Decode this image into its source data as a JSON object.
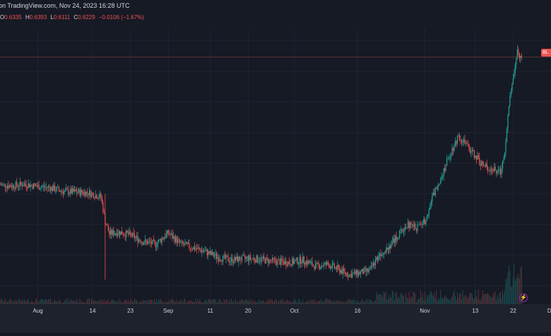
{
  "header": {
    "source": "on TradingView.com, Nov 24, 2023 16:28 UTC"
  },
  "ohlc": {
    "open_label": "O",
    "open": "0.6335",
    "high_label": "H",
    "high": "0.6393",
    "low_label": "L",
    "low": "0.6111",
    "close_label": "C",
    "close": "0.6229",
    "change": "−0.0106 (−1.67%)"
  },
  "price_tag": "BL",
  "colors": {
    "background": "#161a25",
    "axis_bg": "#1e222d",
    "up": "#26a69a",
    "down": "#ef5350",
    "grid": "#1f2330",
    "text": "#d1d4dc"
  },
  "chart_data": {
    "type": "candlestick",
    "x_tick_labels": [
      "Aug",
      "14",
      "23",
      "Sep",
      "11",
      "20",
      "Oct",
      "16",
      "Nov",
      "13",
      "22",
      "De"
    ],
    "x_tick_dates": [
      "2023-08-01",
      "2023-08-14",
      "2023-08-23",
      "2023-09-01",
      "2023-09-11",
      "2023-09-20",
      "2023-10-01",
      "2023-10-16",
      "2023-11-01",
      "2023-11-13",
      "2023-11-22",
      "2023-12-01"
    ],
    "x_range": [
      "2023-07-23",
      "2023-12-01"
    ],
    "y_range": [
      0.22,
      0.67
    ],
    "grid": true,
    "last_price_line": 0.6229,
    "series": [
      {
        "kind": "price",
        "points": [
          [
            "2023-07-23",
            0.415
          ],
          [
            "2023-07-26",
            0.413
          ],
          [
            "2023-07-29",
            0.416
          ],
          [
            "2023-08-01",
            0.412
          ],
          [
            "2023-08-04",
            0.41
          ],
          [
            "2023-08-07",
            0.404
          ],
          [
            "2023-08-10",
            0.403
          ],
          [
            "2023-08-13",
            0.402
          ],
          [
            "2023-08-16",
            0.395
          ],
          [
            "2023-08-17",
            0.355
          ],
          [
            "2023-08-18",
            0.335
          ],
          [
            "2023-08-20",
            0.338
          ],
          [
            "2023-08-23",
            0.333
          ],
          [
            "2023-08-26",
            0.322
          ],
          [
            "2023-08-29",
            0.318
          ],
          [
            "2023-09-01",
            0.336
          ],
          [
            "2023-09-04",
            0.318
          ],
          [
            "2023-09-07",
            0.312
          ],
          [
            "2023-09-10",
            0.305
          ],
          [
            "2023-09-13",
            0.296
          ],
          [
            "2023-09-16",
            0.292
          ],
          [
            "2023-09-20",
            0.295
          ],
          [
            "2023-09-23",
            0.293
          ],
          [
            "2023-09-26",
            0.29
          ],
          [
            "2023-09-30",
            0.288
          ],
          [
            "2023-10-03",
            0.292
          ],
          [
            "2023-10-06",
            0.282
          ],
          [
            "2023-10-09",
            0.285
          ],
          [
            "2023-10-12",
            0.275
          ],
          [
            "2023-10-14",
            0.268
          ],
          [
            "2023-10-17",
            0.272
          ],
          [
            "2023-10-19",
            0.275
          ],
          [
            "2023-10-21",
            0.3
          ],
          [
            "2023-10-24",
            0.318
          ],
          [
            "2023-10-26",
            0.335
          ],
          [
            "2023-10-28",
            0.35
          ],
          [
            "2023-10-30",
            0.345
          ],
          [
            "2023-11-01",
            0.356
          ],
          [
            "2023-11-03",
            0.398
          ],
          [
            "2023-11-05",
            0.43
          ],
          [
            "2023-11-07",
            0.465
          ],
          [
            "2023-11-09",
            0.495
          ],
          [
            "2023-11-11",
            0.478
          ],
          [
            "2023-11-13",
            0.462
          ],
          [
            "2023-11-15",
            0.445
          ],
          [
            "2023-11-17",
            0.44
          ],
          [
            "2023-11-19",
            0.435
          ],
          [
            "2023-11-20",
            0.472
          ],
          [
            "2023-11-21",
            0.545
          ],
          [
            "2023-11-22",
            0.59
          ],
          [
            "2023-11-23",
            0.63
          ],
          [
            "2023-11-24",
            0.6229
          ]
        ]
      }
    ]
  }
}
